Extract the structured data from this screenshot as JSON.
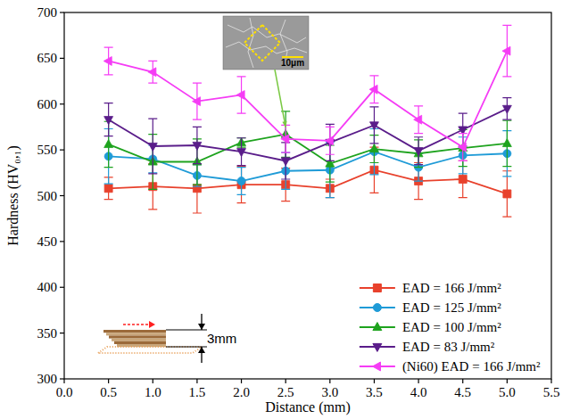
{
  "chart_data": {
    "type": "line",
    "x_label": "Distance (mm)",
    "y_label": "Hardness (HV₀,₁)",
    "x": [
      0.5,
      1.0,
      1.5,
      2.0,
      2.5,
      3.0,
      3.5,
      4.0,
      4.5,
      5.0
    ],
    "series": [
      {
        "name": "EAD = 166 J/mm²",
        "color": "#e8412c",
        "marker": "square",
        "line_style": "solid",
        "values": [
          508,
          510,
          508,
          512,
          512,
          508,
          528,
          516,
          518,
          502
        ],
        "errors": [
          12,
          25,
          27,
          20,
          18,
          10,
          25,
          20,
          20,
          25
        ]
      },
      {
        "name": "EAD = 125 J/mm²",
        "color": "#1f9bd7",
        "marker": "circle",
        "line_style": "solid",
        "values": [
          543,
          540,
          522,
          516,
          527,
          528,
          548,
          531,
          544,
          546
        ],
        "errors": [
          30,
          15,
          12,
          15,
          20,
          30,
          25,
          15,
          20,
          25
        ]
      },
      {
        "name": "EAD = 100 J/mm²",
        "color": "#1ea31e",
        "marker": "triangle-up",
        "line_style": "solid",
        "values": [
          556,
          537,
          537,
          558,
          567,
          535,
          551,
          546,
          552,
          557
        ],
        "errors": [
          25,
          30,
          25,
          5,
          25,
          20,
          15,
          15,
          20,
          25
        ]
      },
      {
        "name": "EAD = 83 J/mm²",
        "color": "#5a1d8a",
        "marker": "triangle-down",
        "line_style": "solid",
        "values": [
          583,
          554,
          555,
          548,
          538,
          558,
          577,
          549,
          572,
          595
        ],
        "errors": [
          18,
          30,
          20,
          15,
          20,
          20,
          20,
          15,
          18,
          12
        ]
      },
      {
        "name": "(Ni60) EAD = 166 J/mm²",
        "color": "#f53cf5",
        "marker": "triangle-left",
        "line_style": "solid",
        "values": [
          647,
          635,
          603,
          610,
          562,
          560,
          616,
          583,
          553,
          658
        ],
        "errors": [
          15,
          12,
          20,
          20,
          15,
          15,
          15,
          15,
          15,
          28
        ]
      }
    ],
    "xlim": [
      0,
      5.5
    ],
    "xticks": [
      {
        "value": 0,
        "label": "0.0"
      },
      0.5,
      {
        "value": 1,
        "label": "1.0"
      },
      1.5,
      {
        "value": 2,
        "label": "2.0"
      },
      2.5,
      {
        "value": 3,
        "label": "3.0"
      },
      3.5,
      {
        "value": 4,
        "label": "4.0"
      },
      4.5,
      {
        "value": 5,
        "label": "5.0"
      },
      5.5
    ],
    "ylim": [
      300,
      700
    ],
    "yticks": [
      300,
      350,
      400,
      450,
      500,
      550,
      600,
      650,
      700
    ],
    "grid": false,
    "legend": "lower right",
    "annotations": [
      "10μm",
      "3mm"
    ]
  }
}
